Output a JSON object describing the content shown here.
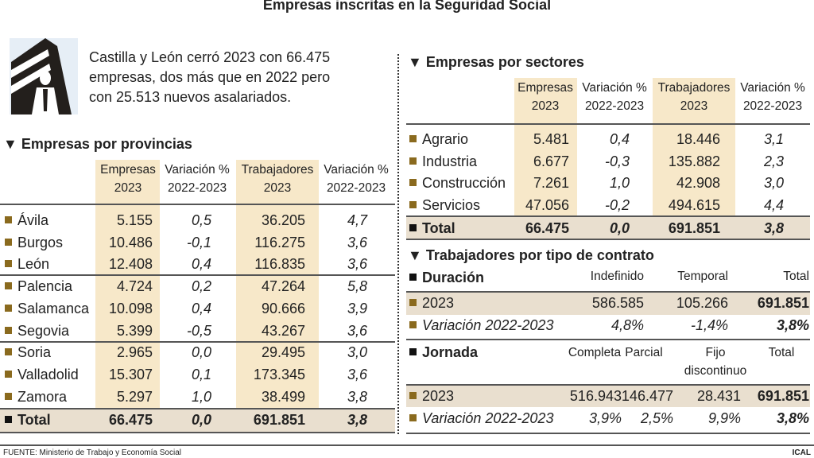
{
  "title": "Empresas inscritas en la Seguridad Social",
  "intro": "Castilla y León cerró 2023 con 66.475 empresas, dos más que en 2022 pero con 25.513 nuevos asalariados.",
  "colors": {
    "column_shade": "#f7e8c9",
    "total_shade": "#e9dfcf",
    "bullet": "#8a6a1e"
  },
  "provincias": {
    "heading": "▼ Empresas por provincias",
    "headers": [
      "Empresas\n2023",
      "Variación %\n2022-2023",
      "Trabajadores\n2023",
      "Variación %\n2022-2023"
    ],
    "rows": [
      [
        "Ávila",
        "5.155",
        "0,5",
        "36.205",
        "4,7"
      ],
      [
        "Burgos",
        "10.486",
        "-0,1",
        "116.275",
        "3,6"
      ],
      [
        "León",
        "12.408",
        "0,4",
        "116.835",
        "3,6"
      ],
      [
        "Palencia",
        "4.724",
        "0,2",
        "47.264",
        "5,8"
      ],
      [
        "Salamanca",
        "10.098",
        "0,4",
        "90.666",
        "3,9"
      ],
      [
        "Segovia",
        "5.399",
        "-0,5",
        "43.267",
        "3,6"
      ],
      [
        "Soria",
        "2.965",
        "0,0",
        "29.495",
        "3,0"
      ],
      [
        "Valladolid",
        "15.307",
        "0,1",
        "173.345",
        "3,6"
      ],
      [
        "Zamora",
        "5.297",
        "1,0",
        "38.499",
        "3,8"
      ]
    ],
    "total": [
      "Total",
      "66.475",
      "0,0",
      "691.851",
      "3,8"
    ]
  },
  "sectores": {
    "heading": "▼ Empresas por sectores",
    "headers": [
      "Empresas\n2023",
      "Variación %\n2022-2023",
      "Trabajadores\n2023",
      "Variación %\n2022-2023"
    ],
    "rows": [
      [
        "Agrario",
        "5.481",
        "0,4",
        "18.446",
        "3,1"
      ],
      [
        "Industria",
        "6.677",
        "-0,3",
        "135.882",
        "2,3"
      ],
      [
        "Construcción",
        "7.261",
        "1,0",
        "42.908",
        "3,0"
      ],
      [
        "Servicios",
        "47.056",
        "-0,2",
        "494.615",
        "4,4"
      ]
    ],
    "total": [
      "Total",
      "66.475",
      "0,0",
      "691.851",
      "3,8"
    ]
  },
  "contrato": {
    "heading": "▼ Trabajadores por tipo de contrato",
    "duracion": {
      "label": "Duración",
      "headers": [
        "Indefinido",
        "Temporal",
        "Total"
      ],
      "rows": [
        [
          "2023",
          "586.585",
          "105.266",
          "691.851"
        ],
        [
          "Variación 2022-2023",
          "4,8%",
          "-1,4%",
          "3,8%"
        ]
      ]
    },
    "jornada": {
      "label": "Jornada",
      "headers": [
        "Completa",
        "Parcial",
        "Fijo\ndiscontinuo",
        "Total"
      ],
      "rows": [
        [
          "2023",
          "516.943",
          "146.477",
          "28.431",
          "691.851"
        ],
        [
          "Variación 2022-2023",
          "3,9%",
          "2,5%",
          "9,9%",
          "3,8%"
        ]
      ]
    }
  },
  "footer": {
    "source": "FUENTE: Ministerio de Trabajo y Economía Social",
    "credit": "ICAL"
  }
}
